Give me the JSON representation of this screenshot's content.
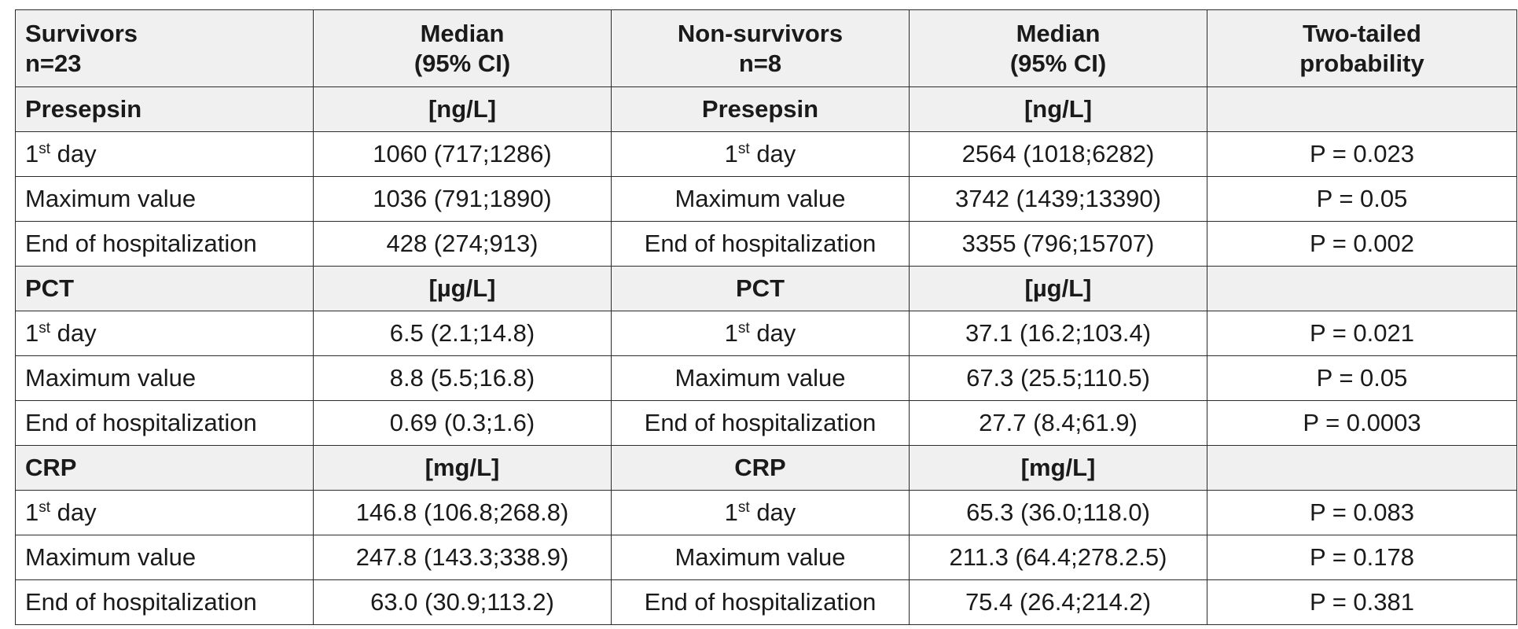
{
  "header": {
    "col1": [
      "Survivors",
      "n=23"
    ],
    "col2": [
      "Median",
      "(95% CI)"
    ],
    "col3": [
      "Non-survivors",
      "n=8"
    ],
    "col4": [
      "Median",
      "(95% CI)"
    ],
    "col5": [
      "Two-tailed",
      "probability"
    ]
  },
  "sections": [
    {
      "marker": "Presepsin",
      "unit": "[ng/L]",
      "rows": [
        {
          "label": "1",
          "sup": "st",
          "label_rest": " day",
          "survivors": "1060 (717;1286)",
          "label2": "1",
          "sup2": "st",
          "label2_rest": " day",
          "non_survivors": "2564  (1018;6282)",
          "p": "P = 0.023"
        },
        {
          "label": "Maximum value",
          "sup": "",
          "label_rest": "",
          "survivors": "1036 (791;1890)",
          "label2": "Maximum value",
          "sup2": "",
          "label2_rest": "",
          "non_survivors": "3742  (1439;13390)",
          "p": "P = 0.05"
        },
        {
          "label": "End of  hospitalization",
          "sup": "",
          "label_rest": "",
          "survivors": "428 (274;913)",
          "label2": "End of hospitalization",
          "sup2": "",
          "label2_rest": "",
          "non_survivors": "3355  (796;15707)",
          "p": "P = 0.002"
        }
      ]
    },
    {
      "marker": "PCT",
      "unit": "[µg/L]",
      "rows": [
        {
          "label": "1",
          "sup": "st",
          "label_rest": " day",
          "survivors": "6.5 (2.1;14.8)",
          "label2": "1",
          "sup2": "st",
          "label2_rest": " day",
          "non_survivors": "37.1  (16.2;103.4)",
          "p": "P = 0.021"
        },
        {
          "label": "Maximum value",
          "sup": "",
          "label_rest": "",
          "survivors": "8.8 (5.5;16.8)",
          "label2": "Maximum value",
          "sup2": "",
          "label2_rest": "",
          "non_survivors": "67.3  (25.5;110.5)",
          "p": "P = 0.05"
        },
        {
          "label": "End of hospitalization",
          "sup": "",
          "label_rest": "",
          "survivors": "0.69 (0.3;1.6)",
          "label2": "End of hospitalization",
          "sup2": "",
          "label2_rest": "",
          "non_survivors": "27.7  (8.4;61.9)",
          "p": "P = 0.0003"
        }
      ]
    },
    {
      "marker": "CRP",
      "unit": "[mg/L]",
      "rows": [
        {
          "label": "1",
          "sup": "st",
          "label_rest": " day",
          "survivors": "146.8 (106.8;268.8)",
          "label2": "1",
          "sup2": "st",
          "label2_rest": " day",
          "non_survivors": "65.3  (36.0;118.0)",
          "p": "P = 0.083"
        },
        {
          "label": "Maximum value",
          "sup": "",
          "label_rest": "",
          "survivors": "247.8 (143.3;338.9)",
          "label2": "Maximum value",
          "sup2": "",
          "label2_rest": "",
          "non_survivors": "211.3  (64.4;278.2.5)",
          "p": "P = 0.178"
        },
        {
          "label": "End of hospitalization",
          "sup": "",
          "label_rest": "",
          "survivors": "63.0 (30.9;113.2)",
          "label2": "End of hospitalization",
          "sup2": "",
          "label2_rest": "",
          "non_survivors": "75.4  (26.4;214.2)",
          "p": "P = 0.381"
        }
      ]
    }
  ],
  "colors": {
    "header_bg": "#f0f0f0",
    "border": "#2b2b2b",
    "text": "#1a1a1a"
  }
}
